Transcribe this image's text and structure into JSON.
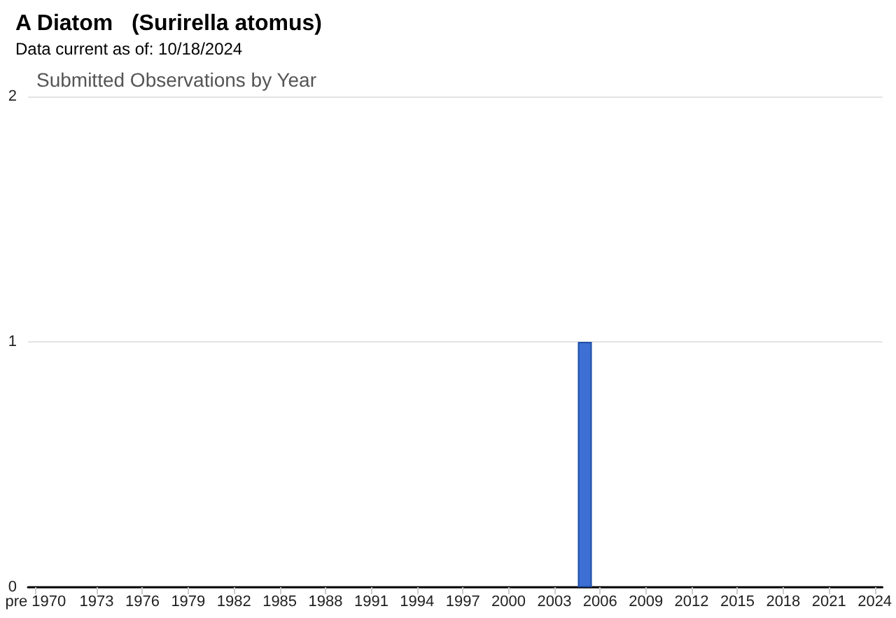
{
  "chart_data": {
    "type": "bar",
    "title": "A Diatom   (Surirella atomus)",
    "subtitle": "Data current as of: 10/18/2024",
    "annotations": [
      "Submitted Observations by Year"
    ],
    "categories": [
      "pre 1970",
      null,
      null,
      null,
      "1973",
      null,
      null,
      "1976",
      null,
      null,
      "1979",
      null,
      null,
      "1982",
      null,
      null,
      "1985",
      null,
      null,
      "1988",
      null,
      null,
      "1991",
      null,
      null,
      "1994",
      null,
      null,
      "1997",
      null,
      null,
      "2000",
      null,
      null,
      "2003",
      null,
      null,
      "2006",
      null,
      null,
      "2009",
      null,
      null,
      "2012",
      null,
      null,
      "2015",
      null,
      null,
      "2018",
      null,
      null,
      "2021",
      null,
      null,
      "2024"
    ],
    "values": [
      0,
      0,
      0,
      0,
      0,
      0,
      0,
      0,
      0,
      0,
      0,
      0,
      0,
      0,
      0,
      0,
      0,
      0,
      0,
      0,
      0,
      0,
      0,
      0,
      0,
      0,
      0,
      0,
      0,
      0,
      0,
      0,
      0,
      0,
      0,
      0,
      1,
      0,
      0,
      0,
      0,
      0,
      0,
      0,
      0,
      0,
      0,
      0,
      0,
      0,
      0,
      0,
      0,
      0,
      0,
      0
    ],
    "color": "#3d6fd4",
    "ylim": [
      0,
      2
    ],
    "yticks": [
      0,
      1,
      2
    ],
    "grid": "y"
  }
}
